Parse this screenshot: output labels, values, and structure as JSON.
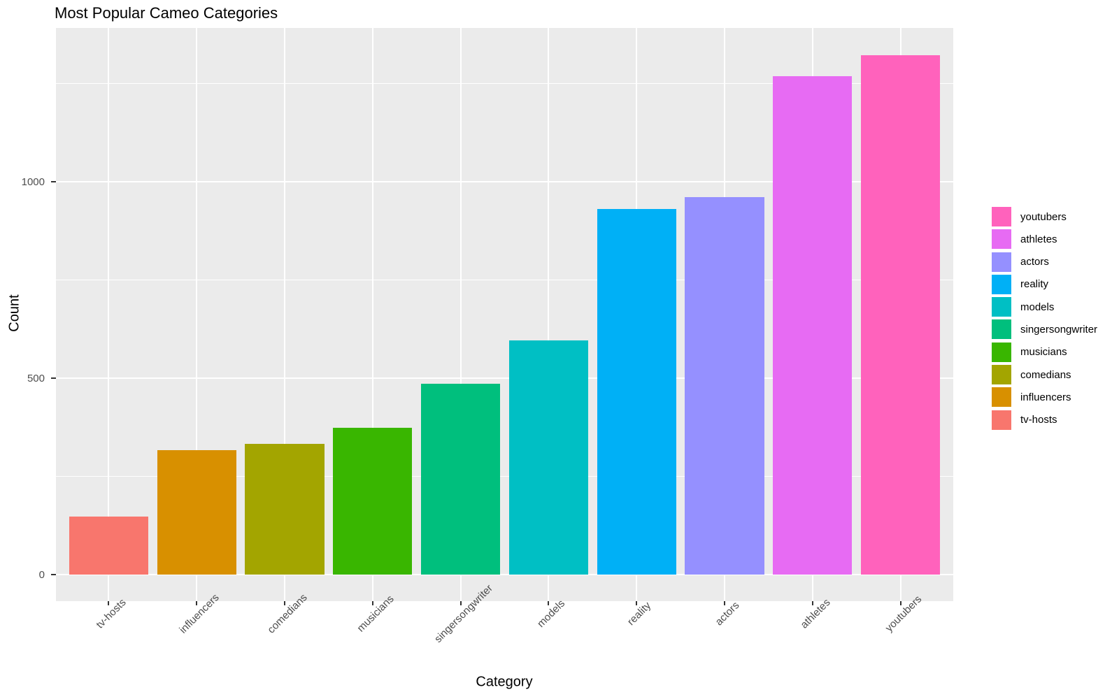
{
  "chart_data": {
    "type": "bar",
    "title": "Most Popular Cameo Categories",
    "xlabel": "Category",
    "ylabel": "Count",
    "categories": [
      "tv-hosts",
      "influencers",
      "comedians",
      "musicians",
      "singersongwriter",
      "models",
      "reality",
      "actors",
      "athletes",
      "youtubers"
    ],
    "values": [
      148,
      318,
      333,
      374,
      487,
      596,
      932,
      961,
      1269,
      1322
    ],
    "bar_colors": [
      "#F8766D",
      "#D89000",
      "#A3A500",
      "#39B600",
      "#00BF7D",
      "#00BFC4",
      "#00B0F6",
      "#9590FF",
      "#E76BF3",
      "#FF62BC"
    ],
    "legend_entries": [
      {
        "label": "youtubers",
        "color": "#FF62BC"
      },
      {
        "label": "athletes",
        "color": "#E76BF3"
      },
      {
        "label": "actors",
        "color": "#9590FF"
      },
      {
        "label": "reality",
        "color": "#00B0F6"
      },
      {
        "label": "models",
        "color": "#00BFC4"
      },
      {
        "label": "singersongwriter",
        "color": "#00BF7D"
      },
      {
        "label": "musicians",
        "color": "#39B600"
      },
      {
        "label": "comedians",
        "color": "#A3A500"
      },
      {
        "label": "influencers",
        "color": "#D89000"
      },
      {
        "label": "tv-hosts",
        "color": "#F8766D"
      }
    ],
    "yticks": [
      0,
      500,
      1000
    ],
    "minor_yticks": [
      250,
      750,
      1250
    ],
    "ylim": [
      0,
      1392
    ],
    "grid": true,
    "legend_position": "right",
    "panel_bg": "#EBEBEB",
    "grid_color": "#FFFFFF",
    "tick_label_color": "#4D4D4D",
    "bar_width_fraction": 0.9
  }
}
